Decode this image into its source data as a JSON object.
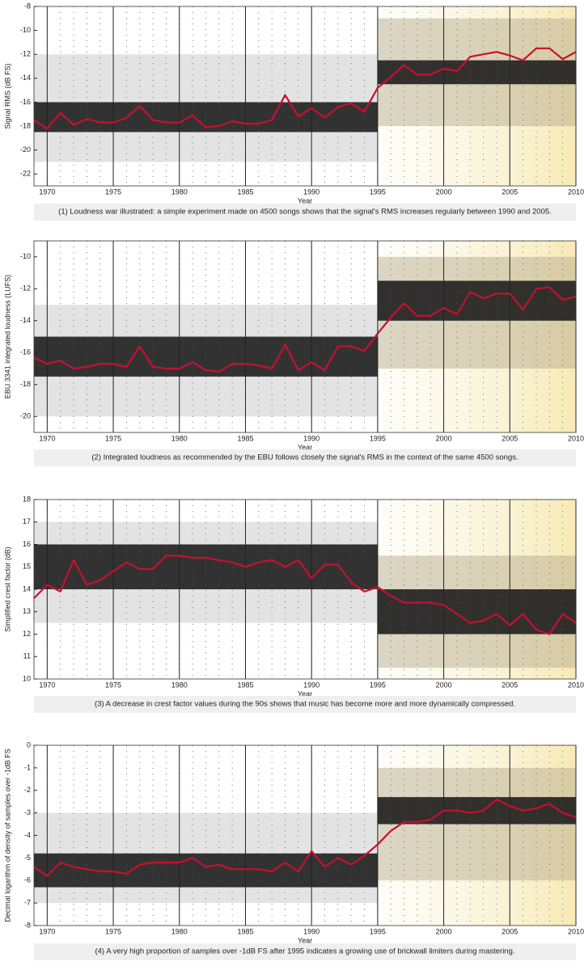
{
  "chart_data": [
    {
      "type": "heatmap-line",
      "ylabel": "Signal RMS (dB FS)",
      "xlabel": "Year",
      "caption": "(1) Loudness war illustrated: a simple experiment made on 4500 songs shows that the signal's RMS increases regularly between 1990 and 2005.",
      "xlim": [
        1969,
        2010
      ],
      "xticks": [
        1970,
        1975,
        1980,
        1985,
        1990,
        1995,
        2000,
        2005,
        2010
      ],
      "ylim": [
        -23,
        -8
      ],
      "yticks": [
        -8,
        -10,
        -12,
        -14,
        -16,
        -18,
        -20,
        -22
      ],
      "bands": [
        {
          "x": [
            1969,
            1995
          ],
          "y": [
            -21,
            -12
          ],
          "color": "#c8c8c8"
        },
        {
          "x": [
            1995,
            2010
          ],
          "y": [
            -18,
            -9
          ],
          "color": "#b8ad90"
        },
        {
          "x": [
            1969,
            1995
          ],
          "y": [
            -18.5,
            -16
          ],
          "color": "#1e1e1e"
        },
        {
          "x": [
            1995,
            2010
          ],
          "y": [
            -14.5,
            -12.5
          ],
          "color": "#1e1e1e"
        }
      ],
      "x": [
        1969,
        1970,
        1971,
        1972,
        1973,
        1974,
        1975,
        1976,
        1977,
        1978,
        1979,
        1980,
        1981,
        1982,
        1983,
        1984,
        1985,
        1986,
        1987,
        1988,
        1989,
        1990,
        1991,
        1992,
        1993,
        1994,
        1995,
        1996,
        1997,
        1998,
        1999,
        2000,
        2001,
        2002,
        2003,
        2004,
        2005,
        2006,
        2007,
        2008,
        2009,
        2010
      ],
      "color": "#c8102e",
      "values": [
        -17.5,
        -18.2,
        -16.9,
        -17.9,
        -17.4,
        -17.7,
        -17.7,
        -17.3,
        -16.3,
        -17.5,
        -17.7,
        -17.7,
        -17.1,
        -18.1,
        -18.0,
        -17.6,
        -17.8,
        -17.8,
        -17.5,
        -15.4,
        -17.2,
        -16.5,
        -17.3,
        -16.4,
        -16.1,
        -16.8,
        -14.8,
        -13.9,
        -12.9,
        -13.7,
        -13.7,
        -13.2,
        -13.4,
        -12.2,
        -12.0,
        -11.8,
        -12.1,
        -12.5,
        -11.5,
        -11.5,
        -12.4,
        -11.8
      ]
    },
    {
      "type": "heatmap-line",
      "ylabel": "EBU 3341 integrated loudness (LUFS)",
      "xlabel": "Year",
      "caption": "(2) Integrated loudness as recommended by the EBU follows closely the signal's RMS in the context of the same 4500 songs.",
      "xlim": [
        1969,
        2010
      ],
      "xticks": [
        1970,
        1975,
        1980,
        1985,
        1990,
        1995,
        2000,
        2005,
        2010
      ],
      "ylim": [
        -21,
        -9
      ],
      "yticks": [
        -10,
        -12,
        -14,
        -16,
        -18,
        -20
      ],
      "bands": [
        {
          "x": [
            1969,
            1995
          ],
          "y": [
            -20,
            -13
          ],
          "color": "#c8c8c8"
        },
        {
          "x": [
            1995,
            2010
          ],
          "y": [
            -17,
            -10
          ],
          "color": "#b8ad90"
        },
        {
          "x": [
            1969,
            1995
          ],
          "y": [
            -17.5,
            -15
          ],
          "color": "#1e1e1e"
        },
        {
          "x": [
            1995,
            2010
          ],
          "y": [
            -14,
            -11.5
          ],
          "color": "#1e1e1e"
        }
      ],
      "x": [
        1969,
        1970,
        1971,
        1972,
        1973,
        1974,
        1975,
        1976,
        1977,
        1978,
        1979,
        1980,
        1981,
        1982,
        1983,
        1984,
        1985,
        1986,
        1987,
        1988,
        1989,
        1990,
        1991,
        1992,
        1993,
        1994,
        1995,
        1996,
        1997,
        1998,
        1999,
        2000,
        2001,
        2002,
        2003,
        2004,
        2005,
        2006,
        2007,
        2008,
        2009,
        2010
      ],
      "color": "#c8102e",
      "values": [
        -16.3,
        -16.7,
        -16.5,
        -17.0,
        -16.9,
        -16.7,
        -16.7,
        -16.9,
        -15.6,
        -16.9,
        -17.0,
        -17.0,
        -16.6,
        -17.1,
        -17.2,
        -16.7,
        -16.7,
        -16.8,
        -17.0,
        -15.5,
        -17.1,
        -16.6,
        -17.1,
        -15.6,
        -15.6,
        -15.9,
        -14.8,
        -13.8,
        -12.9,
        -13.7,
        -13.7,
        -13.2,
        -13.6,
        -12.2,
        -12.6,
        -12.3,
        -12.3,
        -13.3,
        -12.0,
        -11.9,
        -12.7,
        -12.5
      ]
    },
    {
      "type": "heatmap-line",
      "ylabel": "Simplified crest factor (dB)",
      "xlabel": "Year",
      "caption": "(3) A decrease in crest factor values during the 90s shows that music has become more and more dynamically compressed.",
      "xlim": [
        1969,
        2010
      ],
      "xticks": [
        1970,
        1975,
        1980,
        1985,
        1990,
        1995,
        2000,
        2005,
        2010
      ],
      "ylim": [
        10,
        18
      ],
      "yticks": [
        10,
        11,
        12,
        13,
        14,
        15,
        16,
        17,
        18
      ],
      "bands": [
        {
          "x": [
            1969,
            1995
          ],
          "y": [
            12.5,
            17
          ],
          "color": "#c8c8c8"
        },
        {
          "x": [
            1995,
            2010
          ],
          "y": [
            10.5,
            15.5
          ],
          "color": "#b8ad90"
        },
        {
          "x": [
            1969,
            1995
          ],
          "y": [
            14,
            16
          ],
          "color": "#1e1e1e"
        },
        {
          "x": [
            1995,
            2010
          ],
          "y": [
            12,
            14
          ],
          "color": "#1e1e1e"
        }
      ],
      "x": [
        1969,
        1970,
        1971,
        1972,
        1973,
        1974,
        1975,
        1976,
        1977,
        1978,
        1979,
        1980,
        1981,
        1982,
        1983,
        1984,
        1985,
        1986,
        1987,
        1988,
        1989,
        1990,
        1991,
        1992,
        1993,
        1994,
        1995,
        1996,
        1997,
        1998,
        1999,
        2000,
        2001,
        2002,
        2003,
        2004,
        2005,
        2006,
        2007,
        2008,
        2009,
        2010
      ],
      "color": "#c8102e",
      "values": [
        13.6,
        14.2,
        13.9,
        15.3,
        14.2,
        14.4,
        14.8,
        15.2,
        14.9,
        14.9,
        15.5,
        15.5,
        15.4,
        15.4,
        15.3,
        15.2,
        15.0,
        15.2,
        15.3,
        15.0,
        15.3,
        14.5,
        15.1,
        15.1,
        14.3,
        13.9,
        14.1,
        13.7,
        13.4,
        13.4,
        13.4,
        13.3,
        12.9,
        12.5,
        12.6,
        12.9,
        12.4,
        12.9,
        12.2,
        12.0,
        12.9,
        12.5
      ]
    },
    {
      "type": "heatmap-line",
      "ylabel": "Decimal logarithm of density of samples over -1dB FS",
      "xlabel": "Year",
      "caption": "(4) A very high proportion of samples over -1dB FS after 1995 indicates a growing use of brickwall limiters during mastering.",
      "xlim": [
        1969,
        2010
      ],
      "xticks": [
        1970,
        1975,
        1980,
        1985,
        1990,
        1995,
        2000,
        2005,
        2010
      ],
      "ylim": [
        -8,
        0
      ],
      "yticks": [
        0,
        -1,
        -2,
        -3,
        -4,
        -5,
        -6,
        -7,
        -8
      ],
      "bands": [
        {
          "x": [
            1969,
            1995
          ],
          "y": [
            -7,
            -3
          ],
          "color": "#c8c8c8"
        },
        {
          "x": [
            1995,
            2010
          ],
          "y": [
            -6,
            -1
          ],
          "color": "#b8ad90"
        },
        {
          "x": [
            1969,
            1995
          ],
          "y": [
            -6.3,
            -4.8
          ],
          "color": "#1e1e1e"
        },
        {
          "x": [
            1995,
            2010
          ],
          "y": [
            -3.5,
            -2.3
          ],
          "color": "#1e1e1e"
        }
      ],
      "x": [
        1969,
        1970,
        1971,
        1972,
        1973,
        1974,
        1975,
        1976,
        1977,
        1978,
        1979,
        1980,
        1981,
        1982,
        1983,
        1984,
        1985,
        1986,
        1987,
        1988,
        1989,
        1990,
        1991,
        1992,
        1993,
        1994,
        1995,
        1996,
        1997,
        1998,
        1999,
        2000,
        2001,
        2002,
        2003,
        2004,
        2005,
        2006,
        2007,
        2008,
        2009,
        2010
      ],
      "color": "#c8102e",
      "values": [
        -5.4,
        -5.8,
        -5.2,
        -5.4,
        -5.5,
        -5.6,
        -5.6,
        -5.7,
        -5.3,
        -5.2,
        -5.2,
        -5.2,
        -5.0,
        -5.4,
        -5.3,
        -5.5,
        -5.5,
        -5.5,
        -5.6,
        -5.2,
        -5.6,
        -4.7,
        -5.4,
        -5.0,
        -5.3,
        -4.9,
        -4.4,
        -3.8,
        -3.4,
        -3.4,
        -3.3,
        -2.9,
        -2.9,
        -3.0,
        -2.9,
        -2.4,
        -2.7,
        -2.9,
        -2.8,
        -2.6,
        -3.0,
        -3.2
      ]
    }
  ]
}
